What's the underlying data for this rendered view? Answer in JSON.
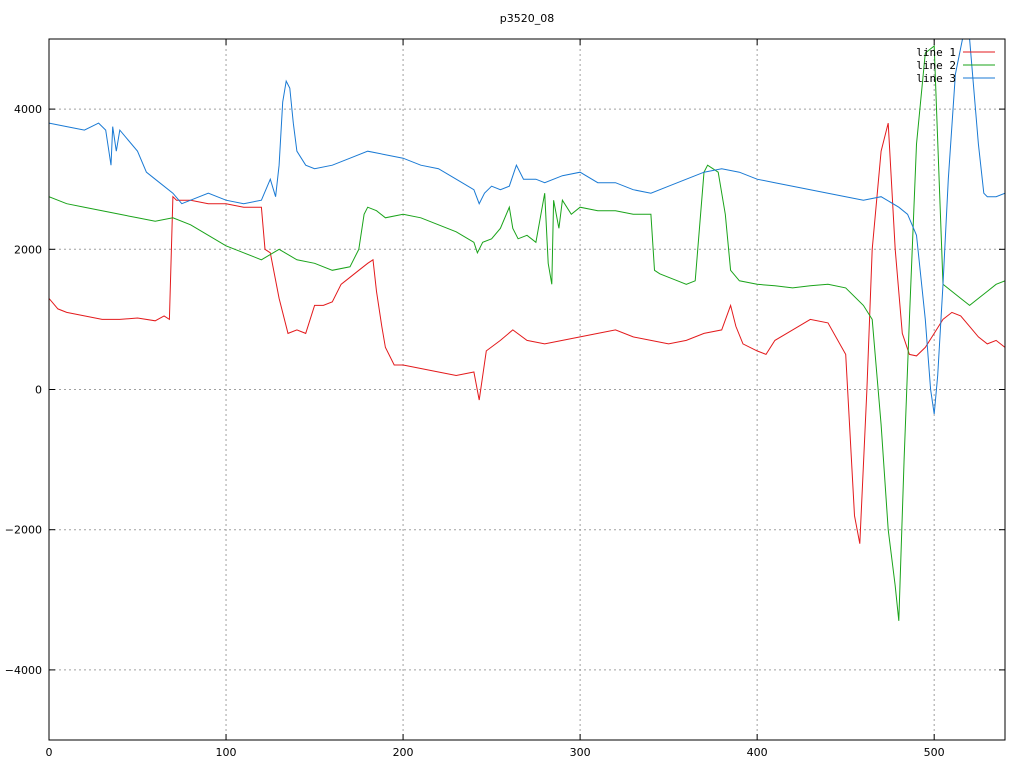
{
  "chart_data": {
    "type": "line",
    "title": "p3520_08",
    "xlabel": "",
    "ylabel": "",
    "xlim": [
      0,
      540
    ],
    "ylim": [
      -5000,
      5000
    ],
    "x_ticks": [
      0,
      100,
      200,
      300,
      400,
      500
    ],
    "y_ticks": [
      -4000,
      -2000,
      0,
      2000,
      4000
    ],
    "x_tick_labels": [
      "0",
      "100",
      "200",
      "300",
      "400",
      "500"
    ],
    "y_tick_labels": [
      "−4000",
      "−2000",
      "0",
      "2000",
      "4000"
    ],
    "grid": true,
    "legend_position": "top-right",
    "series": [
      {
        "name": "line 1",
        "color": "#e31a1c",
        "x": [
          0,
          5,
          10,
          20,
          30,
          40,
          50,
          60,
          65,
          68,
          70,
          72,
          80,
          90,
          100,
          110,
          120,
          122,
          125,
          130,
          135,
          140,
          145,
          150,
          155,
          160,
          165,
          170,
          175,
          180,
          183,
          185,
          188,
          190,
          195,
          200,
          210,
          220,
          230,
          240,
          243,
          247,
          255,
          262,
          270,
          280,
          290,
          300,
          310,
          320,
          330,
          340,
          350,
          360,
          370,
          380,
          385,
          388,
          392,
          400,
          405,
          410,
          420,
          430,
          440,
          450,
          455,
          458,
          462,
          465,
          470,
          474,
          478,
          482,
          486,
          490,
          495,
          500,
          505,
          510,
          515,
          520,
          525,
          530,
          535,
          540
        ],
        "y": [
          1300,
          1150,
          1100,
          1050,
          1000,
          1000,
          1020,
          980,
          1050,
          1000,
          2750,
          2700,
          2700,
          2650,
          2650,
          2600,
          2600,
          2000,
          1950,
          1300,
          800,
          850,
          800,
          1200,
          1200,
          1250,
          1500,
          1600,
          1700,
          1800,
          1850,
          1400,
          900,
          600,
          350,
          350,
          300,
          250,
          200,
          250,
          -150,
          550,
          700,
          850,
          700,
          650,
          700,
          750,
          800,
          850,
          750,
          700,
          650,
          700,
          800,
          850,
          1200,
          900,
          650,
          550,
          500,
          700,
          850,
          1000,
          950,
          500,
          -1800,
          -2200,
          0,
          2000,
          3400,
          3800,
          2000,
          800,
          500,
          480,
          600,
          800,
          1000,
          1100,
          1050,
          900,
          750,
          650,
          700,
          600
        ]
      },
      {
        "name": "line 2",
        "color": "#1aa31a",
        "x": [
          0,
          10,
          20,
          30,
          40,
          50,
          60,
          70,
          80,
          90,
          100,
          110,
          120,
          130,
          140,
          150,
          160,
          170,
          175,
          178,
          180,
          185,
          190,
          200,
          210,
          220,
          230,
          240,
          242,
          245,
          250,
          255,
          260,
          262,
          265,
          270,
          275,
          280,
          282,
          284,
          285,
          288,
          290,
          295,
          300,
          310,
          320,
          330,
          340,
          342,
          345,
          350,
          355,
          360,
          365,
          370,
          372,
          375,
          378,
          382,
          385,
          390,
          400,
          410,
          420,
          430,
          440,
          450,
          460,
          465,
          470,
          474,
          478,
          480,
          483,
          486,
          490,
          495,
          500,
          505,
          510,
          515,
          520,
          525,
          530,
          535,
          540
        ],
        "y": [
          2750,
          2650,
          2600,
          2550,
          2500,
          2450,
          2400,
          2450,
          2350,
          2200,
          2050,
          1950,
          1850,
          2000,
          1850,
          1800,
          1700,
          1750,
          2000,
          2500,
          2600,
          2550,
          2450,
          2500,
          2450,
          2350,
          2250,
          2100,
          1950,
          2100,
          2150,
          2300,
          2600,
          2300,
          2150,
          2200,
          2100,
          2800,
          1800,
          1500,
          2700,
          2300,
          2700,
          2500,
          2600,
          2550,
          2550,
          2500,
          2500,
          1700,
          1650,
          1600,
          1550,
          1500,
          1550,
          3100,
          3200,
          3150,
          3100,
          2500,
          1700,
          1550,
          1500,
          1480,
          1450,
          1480,
          1500,
          1450,
          1200,
          1000,
          -500,
          -2000,
          -2800,
          -3300,
          -1000,
          1000,
          3500,
          4800,
          4900,
          1500,
          1400,
          1300,
          1200,
          1300,
          1400,
          1500,
          1550
        ]
      },
      {
        "name": "line 3",
        "color": "#1a7ad4",
        "x": [
          0,
          10,
          20,
          28,
          32,
          35,
          36,
          38,
          40,
          50,
          55,
          60,
          70,
          75,
          80,
          90,
          100,
          110,
          120,
          125,
          128,
          130,
          132,
          134,
          136,
          138,
          140,
          145,
          150,
          160,
          170,
          180,
          190,
          200,
          210,
          220,
          230,
          240,
          243,
          246,
          250,
          255,
          260,
          264,
          268,
          275,
          280,
          290,
          300,
          310,
          320,
          330,
          340,
          350,
          360,
          370,
          380,
          390,
          400,
          410,
          420,
          430,
          440,
          450,
          460,
          470,
          480,
          485,
          490,
          495,
          498,
          500,
          502,
          505,
          508,
          512,
          516,
          520,
          525,
          528,
          530,
          535,
          540
        ],
        "y": [
          3800,
          3750,
          3700,
          3800,
          3700,
          3200,
          3750,
          3400,
          3700,
          3400,
          3100,
          3000,
          2800,
          2650,
          2700,
          2800,
          2700,
          2650,
          2700,
          3000,
          2750,
          3200,
          4100,
          4400,
          4300,
          3800,
          3400,
          3200,
          3150,
          3200,
          3300,
          3400,
          3350,
          3300,
          3200,
          3150,
          3000,
          2850,
          2650,
          2800,
          2900,
          2850,
          2900,
          3200,
          3000,
          3000,
          2950,
          3050,
          3100,
          2950,
          2950,
          2850,
          2800,
          2900,
          3000,
          3100,
          3150,
          3100,
          3000,
          2950,
          2900,
          2850,
          2800,
          2750,
          2700,
          2750,
          2600,
          2500,
          2200,
          1000,
          0,
          -350,
          200,
          1500,
          3000,
          4500,
          5000,
          5000,
          3500,
          2800,
          2750,
          2750,
          2800
        ]
      }
    ]
  }
}
